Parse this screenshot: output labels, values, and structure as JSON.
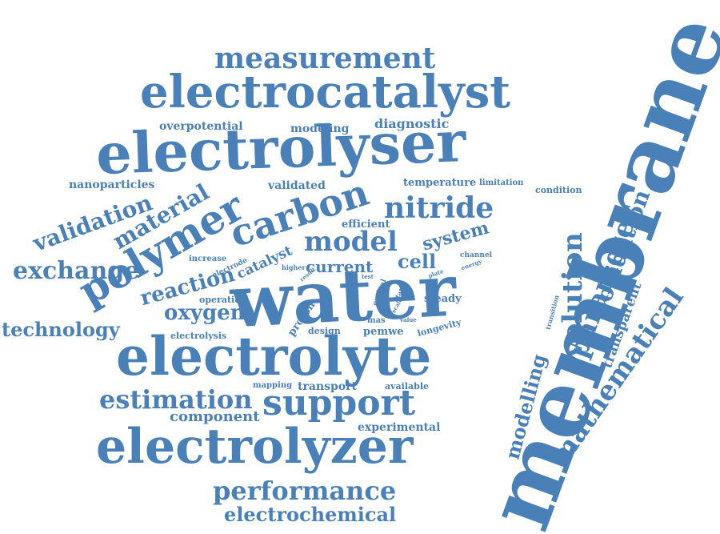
{
  "word_color": "#4a80b8",
  "words": [
    {
      "key": "membrane",
      "text": "membrane"
    },
    {
      "key": "water",
      "text": "water"
    },
    {
      "key": "electrolyser",
      "text": "electrolyser"
    },
    {
      "key": "electrolyte",
      "text": "electrolyte"
    },
    {
      "key": "electrocatalyst",
      "text": "electrocatalyst"
    },
    {
      "key": "electrolyzer",
      "text": "electrolyzer"
    },
    {
      "key": "polymer",
      "text": "polymer"
    },
    {
      "key": "carbon",
      "text": "carbon"
    },
    {
      "key": "support",
      "text": "support"
    },
    {
      "key": "measurement",
      "text": "measurement"
    },
    {
      "key": "nitride",
      "text": "nitride"
    },
    {
      "key": "model",
      "text": "model"
    },
    {
      "key": "evolution",
      "text": "evolution"
    },
    {
      "key": "parameter",
      "text": "parameter"
    },
    {
      "key": "mathematical",
      "text": "mathematical"
    },
    {
      "key": "estimation",
      "text": "estimation"
    },
    {
      "key": "performance",
      "text": "performance"
    },
    {
      "key": "validation",
      "text": "validation"
    },
    {
      "key": "material",
      "text": "material"
    },
    {
      "key": "exchange",
      "text": "exchange"
    },
    {
      "key": "reaction",
      "text": "reaction"
    },
    {
      "key": "oxygen",
      "text": "oxygen"
    },
    {
      "key": "technology",
      "text": "technology"
    },
    {
      "key": "electrochemical",
      "text": "electrochemical"
    },
    {
      "key": "oxidation",
      "text": "oxidation"
    },
    {
      "key": "modelling",
      "text": "modelling"
    },
    {
      "key": "system",
      "text": "system"
    },
    {
      "key": "cell",
      "text": "cell"
    },
    {
      "key": "current",
      "text": "current"
    },
    {
      "key": "catalyst",
      "text": "catalyst"
    },
    {
      "key": "component",
      "text": "component"
    },
    {
      "key": "transparent",
      "text": "transparent"
    },
    {
      "key": "overpotential",
      "text": "overpotential"
    },
    {
      "key": "modeling",
      "text": "modeling"
    },
    {
      "key": "diagnostic",
      "text": "diagnostic"
    },
    {
      "key": "nanoparticles",
      "text": "nanoparticles"
    },
    {
      "key": "validated",
      "text": "validated"
    },
    {
      "key": "temperature",
      "text": "temperature"
    },
    {
      "key": "limitation",
      "text": "limitation"
    },
    {
      "key": "condition",
      "text": "condition"
    },
    {
      "key": "efficient",
      "text": "efficient"
    },
    {
      "key": "proton",
      "text": "proton"
    },
    {
      "key": "steady",
      "text": "steady"
    },
    {
      "key": "design",
      "text": "design"
    },
    {
      "key": "pemwe",
      "text": "pemwe"
    },
    {
      "key": "mas",
      "text": "mas"
    },
    {
      "key": "longevity",
      "text": "longevity"
    },
    {
      "key": "mapping",
      "text": "mapping"
    },
    {
      "key": "transport",
      "text": "transport"
    },
    {
      "key": "available",
      "text": "available"
    },
    {
      "key": "experimental",
      "text": "experimental"
    },
    {
      "key": "operation",
      "text": "operation"
    },
    {
      "key": "electrolysis",
      "text": "electrolysis"
    },
    {
      "key": "increase",
      "text": "increase"
    },
    {
      "key": "electrode",
      "text": "electrode"
    },
    {
      "key": "higher",
      "text": "higher"
    },
    {
      "key": "optical",
      "text": "optical"
    },
    {
      "key": "channel",
      "text": "channel"
    },
    {
      "key": "energy",
      "text": "energy"
    },
    {
      "key": "plate",
      "text": "plate"
    },
    {
      "key": "state",
      "text": "state"
    },
    {
      "key": "scale",
      "text": "scale"
    },
    {
      "key": "result",
      "text": "result"
    },
    {
      "key": "test",
      "text": "test"
    },
    {
      "key": "transition",
      "text": "transition"
    },
    {
      "key": "value",
      "text": "value"
    }
  ]
}
